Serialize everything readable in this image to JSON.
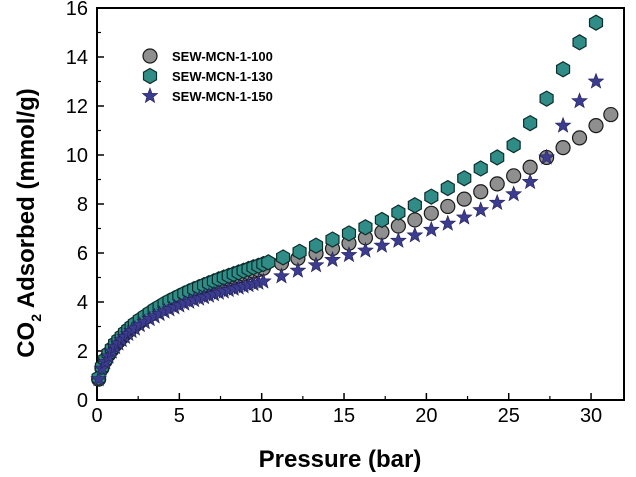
{
  "chart_data": {
    "type": "scatter",
    "xlabel": "Pressure (bar)",
    "ylabel_main": "CO",
    "ylabel_sub": "2",
    "ylabel_rest": " Adsorbed (mmol/g)",
    "xlim": [
      0,
      32
    ],
    "ylim": [
      0,
      16
    ],
    "xticks": [
      "0",
      "5",
      "10",
      "15",
      "20",
      "25",
      "30"
    ],
    "yticks": [
      "0",
      "2",
      "4",
      "6",
      "8",
      "10",
      "12",
      "14",
      "16"
    ],
    "grid": false,
    "legend_position": "top-left",
    "series": [
      {
        "name": "SEW-MCN-1-100",
        "marker": "circle",
        "color": "#8f8f8f",
        "x": [
          0.1,
          0.3,
          0.5,
          0.7,
          0.9,
          1.1,
          1.3,
          1.5,
          1.7,
          1.9,
          2.1,
          2.3,
          2.6,
          2.9,
          3.2,
          3.5,
          3.8,
          4.1,
          4.4,
          4.7,
          5.0,
          5.3,
          5.6,
          5.9,
          6.2,
          6.5,
          6.8,
          7.1,
          7.4,
          7.7,
          8.0,
          8.3,
          8.6,
          8.9,
          9.2,
          9.5,
          9.8,
          10.1,
          11.2,
          12.2,
          13.3,
          14.3,
          15.3,
          16.3,
          17.3,
          18.3,
          19.3,
          20.3,
          21.3,
          22.3,
          23.3,
          24.3,
          25.3,
          26.3,
          27.3,
          28.3,
          29.3,
          30.3,
          31.2
        ],
        "y": [
          0.85,
          1.3,
          1.6,
          1.85,
          2.05,
          2.25,
          2.4,
          2.55,
          2.7,
          2.82,
          2.95,
          3.05,
          3.2,
          3.35,
          3.48,
          3.6,
          3.72,
          3.83,
          3.94,
          4.04,
          4.14,
          4.23,
          4.32,
          4.41,
          4.49,
          4.57,
          4.65,
          4.72,
          4.8,
          4.87,
          4.94,
          5.01,
          5.07,
          5.14,
          5.2,
          5.26,
          5.32,
          5.38,
          5.58,
          5.78,
          5.98,
          6.18,
          6.4,
          6.62,
          6.85,
          7.1,
          7.35,
          7.62,
          7.9,
          8.2,
          8.5,
          8.82,
          9.15,
          9.5,
          9.9,
          10.3,
          10.7,
          11.2,
          11.65
        ]
      },
      {
        "name": "SEW-MCN-1-130",
        "marker": "hexagon",
        "color": "#2f8c86",
        "x": [
          0.1,
          0.3,
          0.5,
          0.7,
          0.9,
          1.1,
          1.3,
          1.5,
          1.7,
          1.9,
          2.1,
          2.3,
          2.6,
          2.9,
          3.2,
          3.5,
          3.8,
          4.1,
          4.4,
          4.7,
          5.0,
          5.3,
          5.6,
          5.9,
          6.2,
          6.5,
          6.8,
          7.1,
          7.4,
          7.7,
          8.0,
          8.3,
          8.6,
          8.9,
          9.2,
          9.5,
          9.8,
          10.1,
          10.4,
          11.3,
          12.3,
          13.3,
          14.3,
          15.3,
          16.3,
          17.3,
          18.3,
          19.3,
          20.3,
          21.3,
          22.3,
          23.3,
          24.3,
          25.3,
          26.3,
          27.3,
          28.3,
          29.3,
          30.3
        ],
        "y": [
          0.9,
          1.35,
          1.65,
          1.9,
          2.1,
          2.3,
          2.45,
          2.6,
          2.75,
          2.88,
          3.0,
          3.12,
          3.28,
          3.42,
          3.56,
          3.7,
          3.82,
          3.94,
          4.05,
          4.15,
          4.25,
          4.35,
          4.44,
          4.53,
          4.61,
          4.69,
          4.77,
          4.85,
          4.93,
          5.0,
          5.07,
          5.14,
          5.21,
          5.28,
          5.35,
          5.42,
          5.48,
          5.55,
          5.62,
          5.82,
          6.05,
          6.3,
          6.55,
          6.8,
          7.05,
          7.35,
          7.65,
          7.95,
          8.3,
          8.65,
          9.05,
          9.45,
          9.9,
          10.4,
          11.3,
          12.3,
          13.5,
          14.6,
          15.4
        ]
      },
      {
        "name": "SEW-MCN-1-150",
        "marker": "star",
        "color": "#3b3b8f",
        "x": [
          0.1,
          0.3,
          0.5,
          0.7,
          0.9,
          1.1,
          1.3,
          1.5,
          1.7,
          1.9,
          2.1,
          2.3,
          2.6,
          2.9,
          3.2,
          3.5,
          3.8,
          4.1,
          4.4,
          4.7,
          5.0,
          5.3,
          5.6,
          5.9,
          6.2,
          6.5,
          6.8,
          7.1,
          7.4,
          7.7,
          8.0,
          8.3,
          8.6,
          8.9,
          9.2,
          9.5,
          9.8,
          10.1,
          11.2,
          12.2,
          13.3,
          14.3,
          15.3,
          16.3,
          17.3,
          18.3,
          19.3,
          20.3,
          21.3,
          22.3,
          23.3,
          24.3,
          25.3,
          26.3,
          27.3,
          28.3,
          29.3,
          30.3
        ],
        "y": [
          0.85,
          1.28,
          1.55,
          1.78,
          1.98,
          2.16,
          2.31,
          2.45,
          2.58,
          2.7,
          2.82,
          2.92,
          3.06,
          3.18,
          3.3,
          3.41,
          3.51,
          3.61,
          3.7,
          3.78,
          3.86,
          3.94,
          4.01,
          4.08,
          4.14,
          4.2,
          4.26,
          4.32,
          4.38,
          4.43,
          4.49,
          4.54,
          4.59,
          4.64,
          4.69,
          4.74,
          4.79,
          4.84,
          5.05,
          5.28,
          5.5,
          5.72,
          5.92,
          6.1,
          6.3,
          6.5,
          6.72,
          6.95,
          7.2,
          7.45,
          7.75,
          8.05,
          8.4,
          8.9,
          9.9,
          11.2,
          12.2,
          13.0
        ]
      }
    ]
  }
}
